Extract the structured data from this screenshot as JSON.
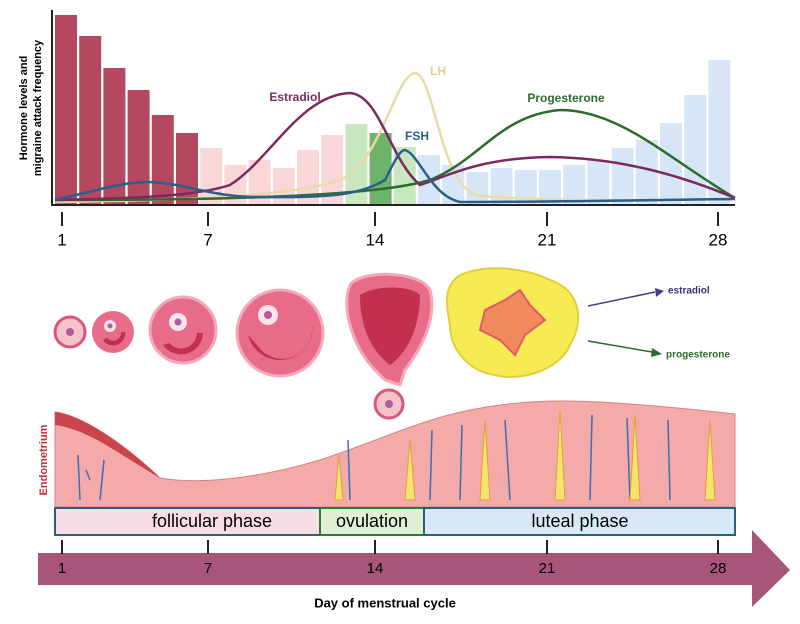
{
  "y_axis_label": [
    "Hormone levels and",
    "migraine attack frequency"
  ],
  "curves": {
    "estradiol": "Estradiol",
    "lh": "LH",
    "fsh": "FSH",
    "progesterone": "Progesterone"
  },
  "top_ticks": [
    "1",
    "7",
    "14",
    "21",
    "28"
  ],
  "secretion": {
    "estradiol": "estradiol",
    "progesterone": "progesterone"
  },
  "endometrium_label": "Endometrium",
  "phases": [
    "follicular phase",
    "ovulation",
    "luteal phase"
  ],
  "bottom_ticks": [
    "1",
    "7",
    "14",
    "21",
    "28"
  ],
  "x_axis_label": "Day of menstrual cycle"
}
